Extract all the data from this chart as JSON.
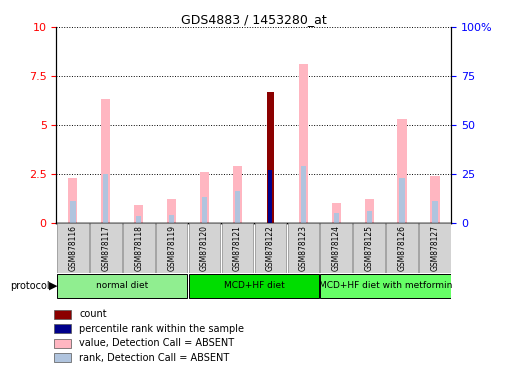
{
  "title": "GDS4883 / 1453280_at",
  "samples": [
    "GSM878116",
    "GSM878117",
    "GSM878118",
    "GSM878119",
    "GSM878120",
    "GSM878121",
    "GSM878122",
    "GSM878123",
    "GSM878124",
    "GSM878125",
    "GSM878126",
    "GSM878127"
  ],
  "count_values": [
    0,
    0,
    0,
    0,
    0,
    0,
    6.7,
    0,
    0,
    0,
    0,
    0
  ],
  "percentile_values": [
    0,
    0,
    0,
    0,
    0,
    0,
    2.7,
    0,
    0,
    0,
    0,
    0
  ],
  "value_absent": [
    2.3,
    6.3,
    0.9,
    1.2,
    2.6,
    2.9,
    0,
    8.1,
    1.0,
    1.2,
    5.3,
    2.4
  ],
  "rank_absent": [
    1.1,
    2.5,
    0.35,
    0.4,
    1.3,
    1.6,
    0,
    2.9,
    0.5,
    0.6,
    2.3,
    1.1
  ],
  "ylim": [
    0,
    10
  ],
  "y2lim": [
    0,
    100
  ],
  "yticks": [
    0,
    2.5,
    5.0,
    7.5,
    10
  ],
  "ytick_labels": [
    "0",
    "2.5",
    "5",
    "7.5",
    "10"
  ],
  "y2ticks": [
    0,
    25,
    50,
    75,
    100
  ],
  "y2tick_labels": [
    "0",
    "25",
    "50",
    "75",
    "100%"
  ],
  "protocols": [
    {
      "label": "normal diet",
      "indices": [
        0,
        1,
        2,
        3
      ],
      "color": "#90ee90"
    },
    {
      "label": "MCD+HF diet",
      "indices": [
        4,
        5,
        6,
        7
      ],
      "color": "#00dd00"
    },
    {
      "label": "MCD+HF diet with metformin",
      "indices": [
        8,
        9,
        10,
        11
      ],
      "color": "#66ff66"
    }
  ],
  "color_count": "#8b0000",
  "color_percentile": "#00008b",
  "color_value_absent": "#ffb6c1",
  "color_rank_absent": "#b0c4de",
  "sample_bg_color": "#d3d3d3",
  "legend_items": [
    {
      "label": "count",
      "color": "#8b0000"
    },
    {
      "label": "percentile rank within the sample",
      "color": "#00008b"
    },
    {
      "label": "value, Detection Call = ABSENT",
      "color": "#ffb6c1"
    },
    {
      "label": "rank, Detection Call = ABSENT",
      "color": "#b0c4de"
    }
  ]
}
